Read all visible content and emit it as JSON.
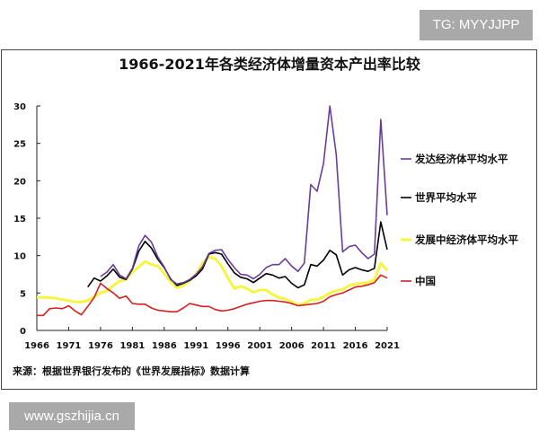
{
  "watermarks": {
    "top": "TG: MYYJJPP",
    "bottom": "www.gszhijia.cn"
  },
  "chart_data": {
    "type": "line",
    "title": "1966-2021年各类经济体增量资本产出率比较",
    "source": "来源：根据世界银行发布的《世界发展指标》数据计算",
    "xlabel": "",
    "ylabel": "",
    "xlim": [
      1966,
      2021
    ],
    "ylim": [
      0,
      30
    ],
    "xticks": [
      "1966",
      "1971",
      "1976",
      "1981",
      "1986",
      "1991",
      "1996",
      "2001",
      "2006",
      "2011",
      "2016",
      "2021"
    ],
    "yticks": [
      "0",
      "5",
      "10",
      "15",
      "20",
      "25",
      "30"
    ],
    "grid": false,
    "legend_placement": "right",
    "series": [
      {
        "name": "发达经济体平均水平",
        "color": "#6a3d9a",
        "start": 1976,
        "values": [
          7.2,
          7.8,
          8.8,
          7.4,
          6.9,
          8.3,
          11.3,
          12.7,
          11.8,
          9.8,
          8.5,
          6.8,
          6.2,
          6.4,
          6.8,
          7.5,
          8.5,
          10.3,
          10.7,
          10.8,
          9.5,
          8.4,
          7.5,
          7.4,
          6.9,
          7.5,
          8.4,
          8.8,
          8.8,
          9.6,
          8.6,
          7.9,
          9.0,
          19.5,
          18.6,
          22.3,
          30.0,
          23.5,
          10.5,
          11.2,
          11.4,
          10.4,
          9.6,
          10.2,
          28.2,
          15.4
        ]
      },
      {
        "name": "世界平均水平",
        "color": "#000000",
        "start": 1974,
        "values": [
          5.8,
          7.0,
          6.6,
          7.3,
          8.2,
          7.1,
          6.8,
          8.2,
          10.6,
          11.9,
          11.0,
          9.5,
          8.4,
          6.9,
          6.0,
          6.3,
          6.7,
          7.3,
          8.2,
          10.2,
          10.4,
          10.2,
          8.9,
          7.7,
          7.1,
          6.9,
          6.4,
          7.0,
          7.6,
          7.4,
          7.0,
          7.2,
          6.3,
          5.7,
          6.1,
          8.8,
          8.6,
          9.4,
          10.7,
          10.1,
          7.4,
          8.1,
          8.4,
          8.1,
          7.9,
          8.3,
          14.5,
          10.8
        ]
      },
      {
        "name": "发展中经济体平均水平",
        "color": "#f5f542",
        "start": 1966,
        "values": [
          4.4,
          4.4,
          4.4,
          4.3,
          4.1,
          4.0,
          3.8,
          3.8,
          4.0,
          4.5,
          5.0,
          5.3,
          6.0,
          6.6,
          6.8,
          7.8,
          8.5,
          9.2,
          8.8,
          8.6,
          7.6,
          6.5,
          5.7,
          6.0,
          6.7,
          7.5,
          9.0,
          9.8,
          9.6,
          8.6,
          7.0,
          5.6,
          5.9,
          5.6,
          5.1,
          5.4,
          5.4,
          4.8,
          4.4,
          4.2,
          3.8,
          3.4,
          3.6,
          4.1,
          4.1,
          4.5,
          5.0,
          5.3,
          5.5,
          6.0,
          6.2,
          6.3,
          6.4,
          6.8,
          9.0,
          8.0
        ]
      },
      {
        "name": "中国",
        "color": "#d62020",
        "start": 1966,
        "values": [
          2.0,
          2.0,
          2.9,
          3.0,
          2.9,
          3.3,
          2.6,
          2.1,
          3.2,
          4.4,
          6.3,
          5.6,
          5.0,
          4.3,
          4.6,
          3.6,
          3.5,
          3.5,
          3.0,
          2.7,
          2.6,
          2.5,
          2.5,
          3.0,
          3.6,
          3.4,
          3.2,
          3.2,
          2.8,
          2.6,
          2.7,
          2.9,
          3.2,
          3.5,
          3.7,
          3.9,
          4.0,
          4.0,
          3.9,
          3.8,
          3.6,
          3.3,
          3.4,
          3.5,
          3.6,
          3.9,
          4.5,
          4.8,
          5.0,
          5.4,
          5.8,
          5.9,
          6.1,
          6.4,
          7.4,
          7.0
        ]
      }
    ]
  }
}
